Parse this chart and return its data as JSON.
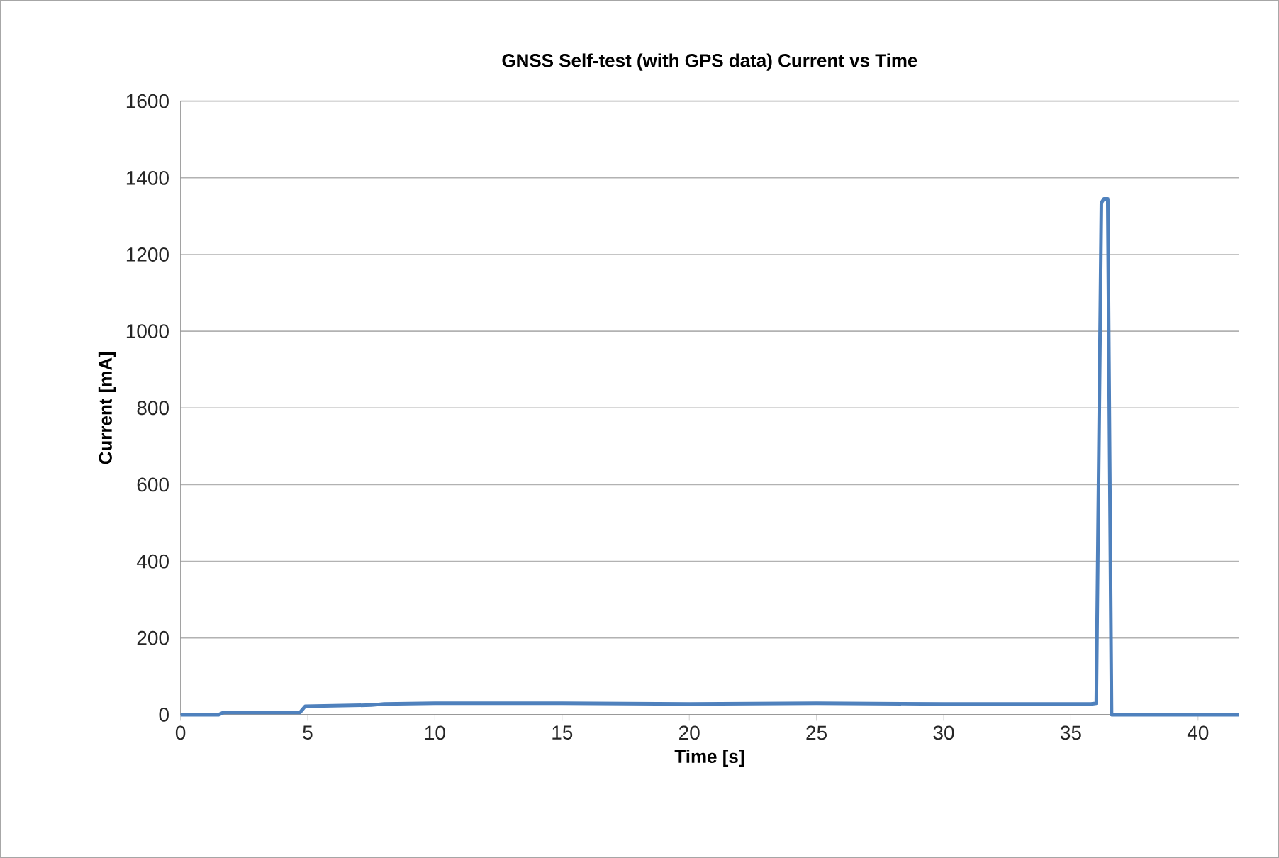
{
  "chart_data": {
    "type": "line",
    "title": "GNSS Self-test (with GPS data) Current vs Time",
    "xlabel": "Time [s]",
    "ylabel": "Current [mA]",
    "x": [
      0,
      1.5,
      1.7,
      4.7,
      4.9,
      7.5,
      8,
      10,
      15,
      20,
      25,
      30,
      35.8,
      36,
      36.2,
      36.3,
      36.45,
      36.6,
      41.6
    ],
    "series": [
      {
        "color": "#4f81bd",
        "values": [
          0,
          0,
          6,
          6,
          22,
          25,
          28,
          30,
          30,
          28,
          30,
          28,
          28,
          30,
          1335,
          1345,
          1345,
          0,
          0
        ]
      }
    ],
    "xlim": [
      0,
      41.6
    ],
    "ylim": [
      0,
      1600
    ],
    "xticks": [
      0,
      5,
      10,
      15,
      20,
      25,
      30,
      35,
      40
    ],
    "yticks": [
      0,
      200,
      400,
      600,
      800,
      1000,
      1200,
      1400,
      1600
    ],
    "grid": "y",
    "marker": "none",
    "line_style": "solid"
  }
}
